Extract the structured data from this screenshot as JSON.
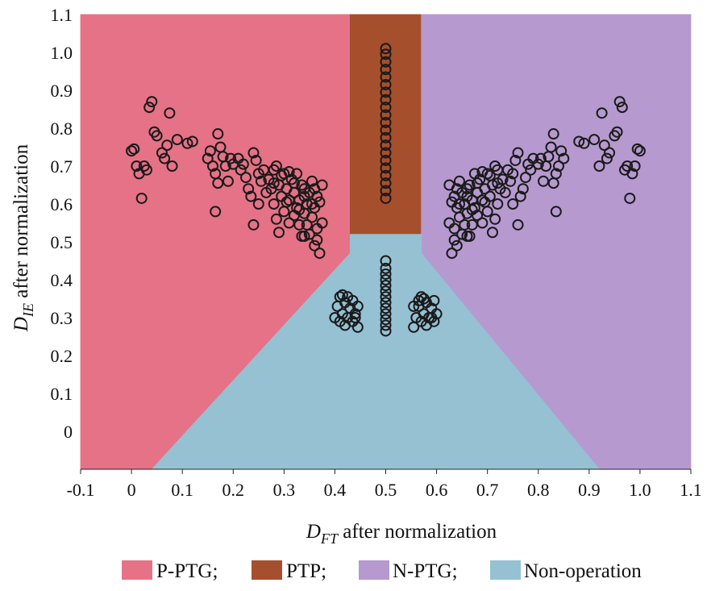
{
  "chart_data": {
    "type": "scatter",
    "title": "",
    "xlabel": {
      "main": "D",
      "sub": "FT",
      "rest": " after normalization"
    },
    "ylabel": {
      "main": "D",
      "sub": "IE",
      "rest": " after normalization"
    },
    "xlim": [
      -0.1,
      1.1
    ],
    "ylim": [
      -0.1,
      1.1
    ],
    "x_ticks": [
      "-0.1",
      "0",
      "0.1",
      "0.2",
      "0.3",
      "0.4",
      "0.5",
      "0.6",
      "0.7",
      "0.8",
      "0.9",
      "1.0",
      "1.1"
    ],
    "y_ticks": [
      "0",
      "0.1",
      "0.2",
      "0.3",
      "0.4",
      "0.5",
      "0.6",
      "0.7",
      "0.8",
      "0.9",
      "1.0",
      "1.1"
    ],
    "grid": false,
    "legend_position": "bottom",
    "regions": [
      {
        "name": "P-PTG;",
        "color": "#e57286",
        "polygon": [
          [
            -0.1,
            -0.1
          ],
          [
            -0.1,
            1.1
          ],
          [
            0.43,
            1.1
          ],
          [
            0.43,
            0.47
          ],
          [
            0.04,
            -0.1
          ]
        ]
      },
      {
        "name": "PTP;",
        "color": "#a64f2d",
        "polygon": [
          [
            0.43,
            1.1
          ],
          [
            0.57,
            1.1
          ],
          [
            0.57,
            0.52
          ],
          [
            0.43,
            0.52
          ]
        ]
      },
      {
        "name": "N-PTG;",
        "color": "#b699cf",
        "polygon": [
          [
            0.57,
            1.1
          ],
          [
            1.1,
            1.1
          ],
          [
            1.1,
            -0.1
          ],
          [
            0.92,
            -0.1
          ],
          [
            0.57,
            0.47
          ]
        ]
      },
      {
        "name": "Non-operation",
        "color": "#95c1d3",
        "polygon": [
          [
            0.43,
            0.52
          ],
          [
            0.57,
            0.52
          ],
          [
            0.57,
            0.47
          ],
          [
            0.92,
            -0.1
          ],
          [
            0.04,
            -0.1
          ],
          [
            0.43,
            0.47
          ]
        ]
      }
    ],
    "series": [
      {
        "marker": "circle-open",
        "edge_color": "#1a1a1a",
        "points": [
          [
            0.0,
            0.74
          ],
          [
            0.005,
            0.745
          ],
          [
            0.01,
            0.7
          ],
          [
            0.015,
            0.68
          ],
          [
            0.02,
            0.615
          ],
          [
            0.025,
            0.7
          ],
          [
            0.03,
            0.69
          ],
          [
            0.035,
            0.855
          ],
          [
            0.04,
            0.87
          ],
          [
            0.045,
            0.79
          ],
          [
            0.05,
            0.78
          ],
          [
            0.06,
            0.735
          ],
          [
            0.065,
            0.72
          ],
          [
            0.07,
            0.755
          ],
          [
            0.075,
            0.84
          ],
          [
            0.08,
            0.7
          ],
          [
            0.09,
            0.77
          ],
          [
            0.11,
            0.76
          ],
          [
            0.12,
            0.765
          ],
          [
            0.15,
            0.72
          ],
          [
            0.155,
            0.74
          ],
          [
            0.16,
            0.7
          ],
          [
            0.165,
            0.68
          ],
          [
            0.17,
            0.785
          ],
          [
            0.17,
            0.655
          ],
          [
            0.165,
            0.58
          ],
          [
            0.175,
            0.75
          ],
          [
            0.18,
            0.725
          ],
          [
            0.185,
            0.7
          ],
          [
            0.19,
            0.66
          ],
          [
            0.195,
            0.72
          ],
          [
            0.2,
            0.705
          ],
          [
            0.21,
            0.72
          ],
          [
            0.215,
            0.69
          ],
          [
            0.22,
            0.705
          ],
          [
            0.225,
            0.67
          ],
          [
            0.23,
            0.64
          ],
          [
            0.235,
            0.62
          ],
          [
            0.24,
            0.735
          ],
          [
            0.24,
            0.545
          ],
          [
            0.245,
            0.715
          ],
          [
            0.25,
            0.68
          ],
          [
            0.25,
            0.6
          ],
          [
            0.255,
            0.66
          ],
          [
            0.26,
            0.69
          ],
          [
            0.265,
            0.63
          ],
          [
            0.27,
            0.665
          ],
          [
            0.275,
            0.64
          ],
          [
            0.28,
            0.69
          ],
          [
            0.28,
            0.6
          ],
          [
            0.285,
            0.7
          ],
          [
            0.285,
            0.56
          ],
          [
            0.29,
            0.65
          ],
          [
            0.29,
            0.525
          ],
          [
            0.295,
            0.62
          ],
          [
            0.3,
            0.68
          ],
          [
            0.3,
            0.58
          ],
          [
            0.305,
            0.64
          ],
          [
            0.31,
            0.61
          ],
          [
            0.31,
            0.55
          ],
          [
            0.315,
            0.665
          ],
          [
            0.32,
            0.63
          ],
          [
            0.32,
            0.57
          ],
          [
            0.325,
            0.68
          ],
          [
            0.325,
            0.59
          ],
          [
            0.33,
            0.61
          ],
          [
            0.33,
            0.545
          ],
          [
            0.335,
            0.65
          ],
          [
            0.335,
            0.515
          ],
          [
            0.34,
            0.62
          ],
          [
            0.34,
            0.575
          ],
          [
            0.345,
            0.6
          ],
          [
            0.345,
            0.545
          ],
          [
            0.35,
            0.63
          ],
          [
            0.35,
            0.52
          ],
          [
            0.355,
            0.66
          ],
          [
            0.355,
            0.565
          ],
          [
            0.36,
            0.59
          ],
          [
            0.36,
            0.49
          ],
          [
            0.365,
            0.62
          ],
          [
            0.365,
            0.535
          ],
          [
            0.37,
            0.605
          ],
          [
            0.37,
            0.47
          ],
          [
            0.375,
            0.65
          ],
          [
            0.375,
            0.55
          ],
          [
            0.28,
            0.655
          ],
          [
            0.295,
            0.675
          ],
          [
            0.31,
            0.685
          ],
          [
            0.32,
            0.655
          ],
          [
            0.34,
            0.64
          ],
          [
            0.305,
            0.605
          ],
          [
            0.33,
            0.585
          ],
          [
            0.34,
            0.515
          ],
          [
            0.355,
            0.6
          ],
          [
            0.36,
            0.64
          ],
          [
            0.365,
            0.505
          ],
          [
            1.0,
            0.74
          ],
          [
            0.995,
            0.745
          ],
          [
            0.99,
            0.7
          ],
          [
            0.985,
            0.68
          ],
          [
            0.98,
            0.615
          ],
          [
            0.975,
            0.7
          ],
          [
            0.97,
            0.69
          ],
          [
            0.965,
            0.855
          ],
          [
            0.96,
            0.87
          ],
          [
            0.955,
            0.79
          ],
          [
            0.95,
            0.78
          ],
          [
            0.94,
            0.735
          ],
          [
            0.935,
            0.72
          ],
          [
            0.93,
            0.755
          ],
          [
            0.925,
            0.84
          ],
          [
            0.92,
            0.7
          ],
          [
            0.91,
            0.77
          ],
          [
            0.89,
            0.76
          ],
          [
            0.88,
            0.765
          ],
          [
            0.85,
            0.72
          ],
          [
            0.845,
            0.74
          ],
          [
            0.84,
            0.7
          ],
          [
            0.835,
            0.68
          ],
          [
            0.83,
            0.785
          ],
          [
            0.83,
            0.655
          ],
          [
            0.835,
            0.58
          ],
          [
            0.825,
            0.75
          ],
          [
            0.82,
            0.725
          ],
          [
            0.815,
            0.7
          ],
          [
            0.81,
            0.66
          ],
          [
            0.805,
            0.72
          ],
          [
            0.8,
            0.705
          ],
          [
            0.79,
            0.72
          ],
          [
            0.785,
            0.69
          ],
          [
            0.78,
            0.705
          ],
          [
            0.775,
            0.67
          ],
          [
            0.77,
            0.64
          ],
          [
            0.765,
            0.62
          ],
          [
            0.76,
            0.735
          ],
          [
            0.76,
            0.545
          ],
          [
            0.755,
            0.715
          ],
          [
            0.75,
            0.68
          ],
          [
            0.75,
            0.6
          ],
          [
            0.745,
            0.66
          ],
          [
            0.74,
            0.69
          ],
          [
            0.735,
            0.63
          ],
          [
            0.73,
            0.665
          ],
          [
            0.725,
            0.64
          ],
          [
            0.72,
            0.69
          ],
          [
            0.72,
            0.6
          ],
          [
            0.715,
            0.7
          ],
          [
            0.715,
            0.56
          ],
          [
            0.71,
            0.65
          ],
          [
            0.71,
            0.525
          ],
          [
            0.705,
            0.62
          ],
          [
            0.7,
            0.68
          ],
          [
            0.7,
            0.58
          ],
          [
            0.695,
            0.64
          ],
          [
            0.69,
            0.61
          ],
          [
            0.69,
            0.55
          ],
          [
            0.685,
            0.665
          ],
          [
            0.68,
            0.63
          ],
          [
            0.68,
            0.57
          ],
          [
            0.675,
            0.68
          ],
          [
            0.675,
            0.59
          ],
          [
            0.67,
            0.61
          ],
          [
            0.67,
            0.545
          ],
          [
            0.665,
            0.65
          ],
          [
            0.665,
            0.515
          ],
          [
            0.66,
            0.62
          ],
          [
            0.66,
            0.575
          ],
          [
            0.655,
            0.6
          ],
          [
            0.655,
            0.545
          ],
          [
            0.65,
            0.63
          ],
          [
            0.65,
            0.52
          ],
          [
            0.645,
            0.66
          ],
          [
            0.645,
            0.565
          ],
          [
            0.64,
            0.59
          ],
          [
            0.64,
            0.49
          ],
          [
            0.635,
            0.62
          ],
          [
            0.635,
            0.535
          ],
          [
            0.63,
            0.605
          ],
          [
            0.63,
            0.47
          ],
          [
            0.625,
            0.65
          ],
          [
            0.625,
            0.55
          ],
          [
            0.72,
            0.655
          ],
          [
            0.705,
            0.675
          ],
          [
            0.69,
            0.685
          ],
          [
            0.68,
            0.655
          ],
          [
            0.66,
            0.64
          ],
          [
            0.695,
            0.605
          ],
          [
            0.67,
            0.585
          ],
          [
            0.66,
            0.515
          ],
          [
            0.645,
            0.6
          ],
          [
            0.64,
            0.64
          ],
          [
            0.635,
            0.505
          ],
          [
            0.5,
            1.01
          ],
          [
            0.5,
            0.995
          ],
          [
            0.5,
            0.975
          ],
          [
            0.5,
            0.955
          ],
          [
            0.5,
            0.935
          ],
          [
            0.5,
            0.915
          ],
          [
            0.5,
            0.895
          ],
          [
            0.5,
            0.875
          ],
          [
            0.5,
            0.855
          ],
          [
            0.5,
            0.835
          ],
          [
            0.5,
            0.815
          ],
          [
            0.5,
            0.795
          ],
          [
            0.5,
            0.775
          ],
          [
            0.5,
            0.755
          ],
          [
            0.5,
            0.735
          ],
          [
            0.5,
            0.715
          ],
          [
            0.5,
            0.695
          ],
          [
            0.5,
            0.675
          ],
          [
            0.5,
            0.655
          ],
          [
            0.5,
            0.635
          ],
          [
            0.5,
            0.615
          ],
          [
            0.5,
            0.45
          ],
          [
            0.5,
            0.43
          ],
          [
            0.5,
            0.415
          ],
          [
            0.5,
            0.4
          ],
          [
            0.5,
            0.385
          ],
          [
            0.5,
            0.37
          ],
          [
            0.5,
            0.355
          ],
          [
            0.5,
            0.34
          ],
          [
            0.5,
            0.325
          ],
          [
            0.5,
            0.31
          ],
          [
            0.5,
            0.295
          ],
          [
            0.5,
            0.28
          ],
          [
            0.5,
            0.265
          ],
          [
            0.4,
            0.3
          ],
          [
            0.405,
            0.33
          ],
          [
            0.41,
            0.355
          ],
          [
            0.41,
            0.29
          ],
          [
            0.415,
            0.31
          ],
          [
            0.42,
            0.34
          ],
          [
            0.42,
            0.28
          ],
          [
            0.425,
            0.3
          ],
          [
            0.43,
            0.325
          ],
          [
            0.435,
            0.345
          ],
          [
            0.435,
            0.29
          ],
          [
            0.44,
            0.31
          ],
          [
            0.445,
            0.33
          ],
          [
            0.445,
            0.275
          ],
          [
            0.415,
            0.36
          ],
          [
            0.425,
            0.355
          ],
          [
            0.44,
            0.3
          ],
          [
            0.56,
            0.3
          ],
          [
            0.565,
            0.33
          ],
          [
            0.57,
            0.355
          ],
          [
            0.57,
            0.29
          ],
          [
            0.575,
            0.31
          ],
          [
            0.58,
            0.34
          ],
          [
            0.58,
            0.28
          ],
          [
            0.585,
            0.3
          ],
          [
            0.59,
            0.325
          ],
          [
            0.595,
            0.345
          ],
          [
            0.595,
            0.29
          ],
          [
            0.6,
            0.31
          ],
          [
            0.555,
            0.33
          ],
          [
            0.555,
            0.275
          ],
          [
            0.565,
            0.345
          ],
          [
            0.575,
            0.35
          ],
          [
            0.59,
            0.3
          ]
        ]
      }
    ]
  }
}
